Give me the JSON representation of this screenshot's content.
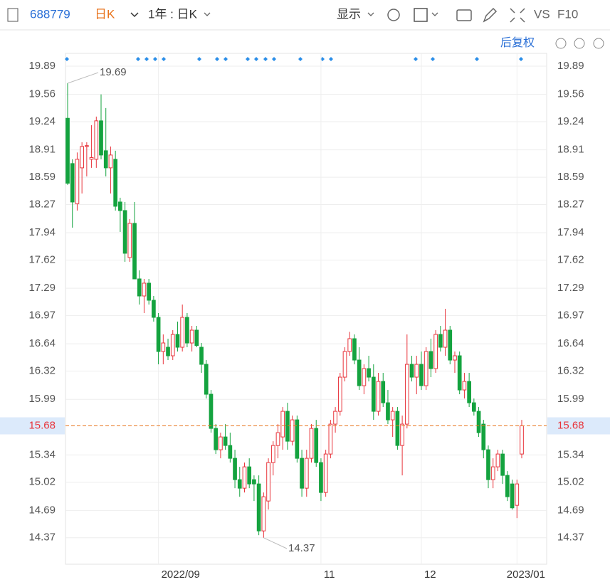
{
  "toolbar": {
    "code": "688779",
    "period": "日K",
    "range": "1年 : 日K",
    "display": "显示",
    "vs": "VS",
    "f10": "F10",
    "adjust": "后复权"
  },
  "chart_data": {
    "type": "candlestick",
    "categories": [
      null,
      null,
      null,
      null,
      null,
      null,
      null,
      null,
      null,
      null,
      null,
      null,
      null,
      null,
      null,
      null,
      null,
      null,
      null,
      "2022/09",
      null,
      null,
      null,
      null,
      null,
      null,
      null,
      null,
      null,
      null,
      null,
      null,
      null,
      null,
      null,
      null,
      null,
      null,
      null,
      null,
      null,
      null,
      null,
      null,
      null,
      null,
      null,
      null,
      null,
      null,
      null,
      null,
      null,
      "11",
      null,
      null,
      null,
      null,
      null,
      null,
      null,
      null,
      null,
      null,
      null,
      null,
      null,
      null,
      null,
      null,
      null,
      null,
      null,
      null,
      "12",
      null,
      null,
      null,
      null,
      null,
      null,
      null,
      null,
      null,
      null,
      null,
      null,
      null,
      null,
      null,
      null,
      null,
      null,
      null,
      "2023/01",
      null
    ],
    "open": [
      19.28,
      18.75,
      18.28,
      18.7,
      18.95,
      18.8,
      18.8,
      19.25,
      18.9,
      18.7,
      18.8,
      18.3,
      18.2,
      17.65,
      18.05,
      17.4,
      17.2,
      17.35,
      17.15,
      16.95,
      16.55,
      16.6,
      16.5,
      16.75,
      16.6,
      16.95,
      16.65,
      16.8,
      16.6,
      16.4,
      16.05,
      15.65,
      15.4,
      15.55,
      15.45,
      15.3,
      15.05,
      14.95,
      15.2,
      15.05,
      15.0,
      14.45,
      14.8,
      15.25,
      15.45,
      15.55,
      15.85,
      15.5,
      15.75,
      15.3,
      14.95,
      15.3,
      15.65,
      15.25,
      14.9,
      15.35,
      15.7,
      15.85,
      16.25,
      16.55,
      16.7,
      16.45,
      16.15,
      16.35,
      16.25,
      15.85,
      16.2,
      15.95,
      15.75,
      15.85,
      15.45,
      15.7,
      16.4,
      16.25,
      16.4,
      16.15,
      16.55,
      16.35,
      16.75,
      16.6,
      16.8,
      16.45,
      16.5,
      16.1,
      16.2,
      15.95,
      15.85,
      15.7,
      15.4,
      15.05,
      15.2,
      15.35,
      15.1,
      15.0,
      14.75,
      15.35
    ],
    "high": [
      19.69,
      18.8,
      18.88,
      19.0,
      19.0,
      19.2,
      19.3,
      19.56,
      19.4,
      18.95,
      18.9,
      18.35,
      18.3,
      18.1,
      18.3,
      17.5,
      17.4,
      17.4,
      17.2,
      17.0,
      16.75,
      16.7,
      16.8,
      16.9,
      17.1,
      17.0,
      16.85,
      16.85,
      16.65,
      16.45,
      16.1,
      15.7,
      15.6,
      15.7,
      15.6,
      15.4,
      15.2,
      15.25,
      15.3,
      15.1,
      15.1,
      14.9,
      15.3,
      15.5,
      15.7,
      15.9,
      15.95,
      15.8,
      15.8,
      15.4,
      15.4,
      15.7,
      15.75,
      15.3,
      15.4,
      15.75,
      15.9,
      16.3,
      16.6,
      16.78,
      16.75,
      16.6,
      16.4,
      16.5,
      16.4,
      16.3,
      16.3,
      16.1,
      15.9,
      15.9,
      15.8,
      16.75,
      16.5,
      16.5,
      16.55,
      16.6,
      16.7,
      16.8,
      16.85,
      17.05,
      16.85,
      16.55,
      16.55,
      16.3,
      16.3,
      16.0,
      15.9,
      15.75,
      15.45,
      15.3,
      15.4,
      15.4,
      15.15,
      15.05,
      15.05,
      15.75
    ],
    "low": [
      18.5,
      18.0,
      18.2,
      18.4,
      18.6,
      18.7,
      18.7,
      18.8,
      18.6,
      18.4,
      18.2,
      17.95,
      17.6,
      17.6,
      17.4,
      17.1,
      17.0,
      17.1,
      16.9,
      16.4,
      16.4,
      16.45,
      16.45,
      16.55,
      16.55,
      16.6,
      16.55,
      16.6,
      16.3,
      16.0,
      15.6,
      15.35,
      15.3,
      15.4,
      15.25,
      14.95,
      14.85,
      14.9,
      14.95,
      14.8,
      14.4,
      14.37,
      14.7,
      15.1,
      15.3,
      15.4,
      15.4,
      15.45,
      15.25,
      14.85,
      14.85,
      15.25,
      15.2,
      14.8,
      14.85,
      15.3,
      15.6,
      15.8,
      16.2,
      16.5,
      16.4,
      16.1,
      16.05,
      16.2,
      15.75,
      15.8,
      15.9,
      15.7,
      15.55,
      15.4,
      15.1,
      15.65,
      16.2,
      16.05,
      16.1,
      16.1,
      16.25,
      16.3,
      16.55,
      16.5,
      16.4,
      16.3,
      16.05,
      16.0,
      15.9,
      15.8,
      15.55,
      15.3,
      14.95,
      14.95,
      15.15,
      15.0,
      14.8,
      14.7,
      14.6,
      15.3
    ],
    "close": [
      18.52,
      18.3,
      18.8,
      18.95,
      18.96,
      18.82,
      19.25,
      18.85,
      18.7,
      18.85,
      18.25,
      18.2,
      17.7,
      18.05,
      17.4,
      17.2,
      17.35,
      17.15,
      16.95,
      16.55,
      16.65,
      16.5,
      16.75,
      16.6,
      16.95,
      16.65,
      16.8,
      16.62,
      16.4,
      16.05,
      15.65,
      15.4,
      15.55,
      15.45,
      15.3,
      15.05,
      14.95,
      15.2,
      15.0,
      15.0,
      14.45,
      14.85,
      15.25,
      15.45,
      15.6,
      15.85,
      15.5,
      15.75,
      15.3,
      14.95,
      15.3,
      15.65,
      15.25,
      14.9,
      15.35,
      15.7,
      15.85,
      16.25,
      16.55,
      16.7,
      16.45,
      16.15,
      16.35,
      16.25,
      15.85,
      16.2,
      15.95,
      15.75,
      15.85,
      15.45,
      15.7,
      16.4,
      16.25,
      16.4,
      16.15,
      16.55,
      16.35,
      16.75,
      16.6,
      16.8,
      16.45,
      16.5,
      16.1,
      16.2,
      15.95,
      15.85,
      15.6,
      15.4,
      15.05,
      15.2,
      15.35,
      15.1,
      14.85,
      14.72,
      15.0,
      15.68
    ],
    "up_color": "#e8353c",
    "down_color": "#14a33f",
    "ylim": [
      14.06,
      20.04
    ],
    "yticks": [
      14.37,
      14.69,
      15.02,
      15.34,
      15.99,
      16.32,
      16.64,
      16.97,
      17.29,
      17.62,
      17.94,
      18.27,
      18.59,
      18.91,
      19.24,
      19.56,
      19.89
    ],
    "grid": true,
    "last_price": 15.68,
    "high_note": 19.69,
    "low_note": 14.37
  }
}
